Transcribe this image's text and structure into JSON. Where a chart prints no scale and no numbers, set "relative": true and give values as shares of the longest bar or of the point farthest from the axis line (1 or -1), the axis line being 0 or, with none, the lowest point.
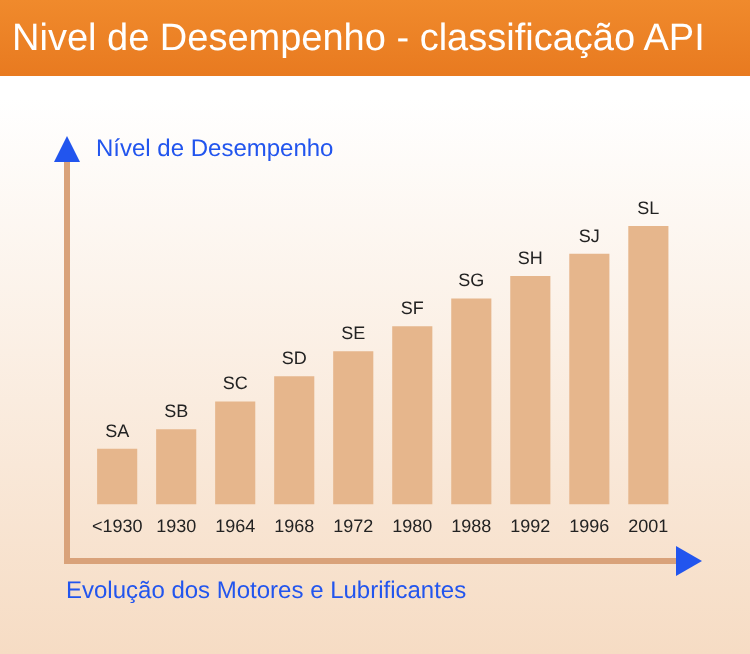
{
  "chart_data": {
    "type": "bar",
    "title": "Nivel de Desempenho - classificação API",
    "xlabel": "Evolução dos Motores e Lubrificantes",
    "ylabel": "Nível de Desempenho",
    "relative": true,
    "categories": [
      "<1930",
      "1930",
      "1964",
      "1968",
      "1972",
      "1980",
      "1988",
      "1992",
      "1996",
      "2001"
    ],
    "values": [
      0.2,
      0.27,
      0.37,
      0.46,
      0.55,
      0.64,
      0.74,
      0.82,
      0.9,
      1
    ],
    "color": "#e6b68c",
    "grid": false,
    "legend": false,
    "annotations": [
      {
        "text": "SA",
        "x": "<1930",
        "y": 0.2
      },
      {
        "text": "SB",
        "x": "1930",
        "y": 0.27
      },
      {
        "text": "SC",
        "x": "1964",
        "y": 0.37
      },
      {
        "text": "SD",
        "x": "1968",
        "y": 0.46
      },
      {
        "text": "SE",
        "x": "1972",
        "y": 0.55
      },
      {
        "text": "SF",
        "x": "1980",
        "y": 0.64
      },
      {
        "text": "SG",
        "x": "1988",
        "y": 0.74
      },
      {
        "text": "SH",
        "x": "1992",
        "y": 0.82
      },
      {
        "text": "SJ",
        "x": "1996",
        "y": 0.9
      },
      {
        "text": "SL",
        "x": "2001",
        "y": 1
      }
    ]
  }
}
